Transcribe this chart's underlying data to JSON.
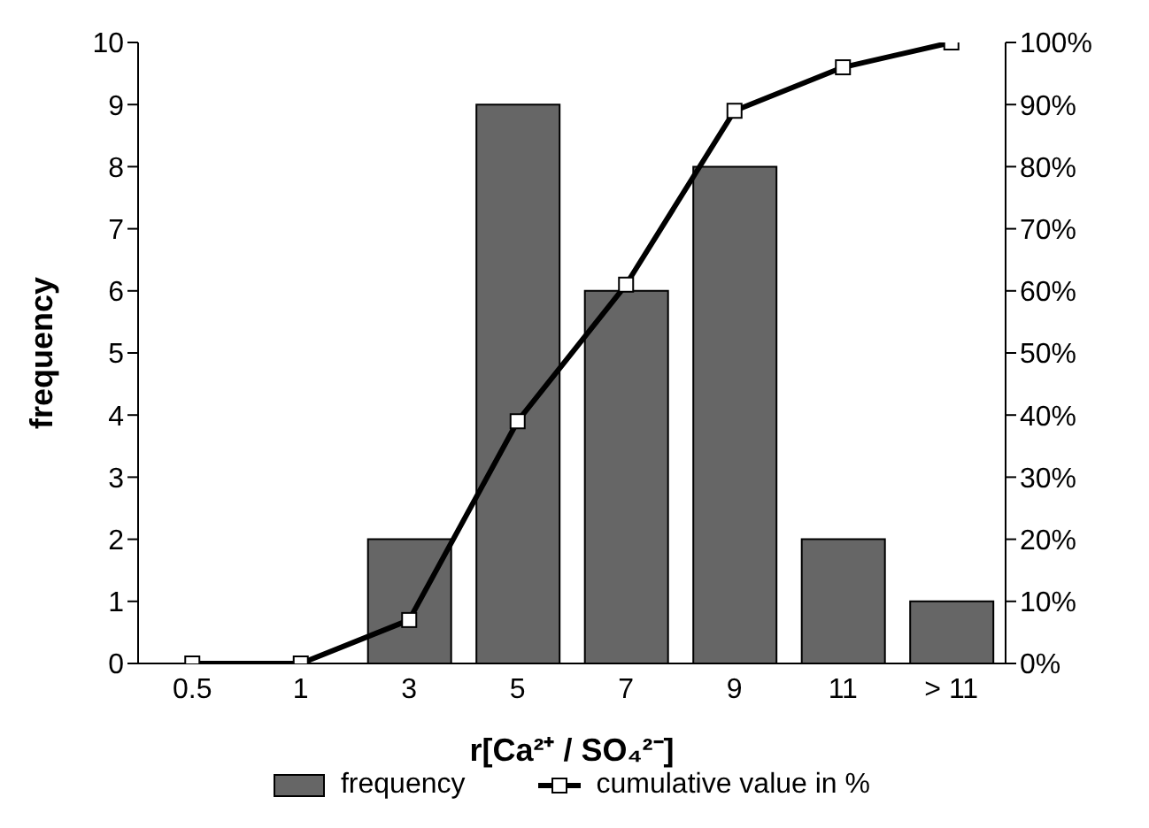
{
  "chart_data": {
    "type": "bar",
    "xlabel": "r[Ca²⁺ / SO₄²⁻]",
    "ylabel": "frequency",
    "categories": [
      "0.5",
      "1",
      "3",
      "5",
      "7",
      "9",
      "11",
      "> 11"
    ],
    "series": [
      {
        "name": "frequency",
        "color": "#666666",
        "values": [
          0,
          0,
          2,
          9,
          6,
          8,
          2,
          1
        ]
      },
      {
        "name": "cumulative value in %",
        "type": "line",
        "axis": "y2",
        "color": "#000000",
        "values": [
          0,
          0,
          7,
          39,
          61,
          89,
          96,
          100
        ]
      }
    ],
    "ylim": [
      0,
      10
    ],
    "yticks": [
      0,
      1,
      2,
      3,
      4,
      5,
      6,
      7,
      8,
      9,
      10
    ],
    "y2lim": [
      0,
      100
    ],
    "y2ticks": [
      {
        "value": 0,
        "label": "0%"
      },
      {
        "value": 10,
        "label": "10%"
      },
      {
        "value": 20,
        "label": "20%"
      },
      {
        "value": 30,
        "label": "30%"
      },
      {
        "value": 40,
        "label": "40%"
      },
      {
        "value": 50,
        "label": "50%"
      },
      {
        "value": 60,
        "label": "60%"
      },
      {
        "value": 70,
        "label": "70%"
      },
      {
        "value": 80,
        "label": "80%"
      },
      {
        "value": 90,
        "label": "90%"
      },
      {
        "value": 100,
        "label": "100%"
      }
    ],
    "marker": "square",
    "legend": "bottom",
    "grid": false
  }
}
